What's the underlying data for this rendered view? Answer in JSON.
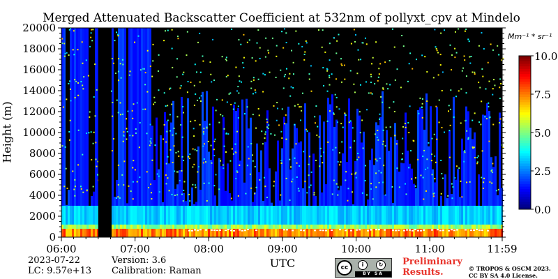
{
  "chart_data": {
    "type": "heatmap",
    "title": "Merged Attenuated Backscatter Coefficient at 532nm of pollyxt_cpv at Mindelo",
    "xlabel": "UTC",
    "ylabel": "Height (m)",
    "x_ticks": [
      "06:00",
      "07:00",
      "08:00",
      "09:00",
      "10:00",
      "11:00",
      "11:59"
    ],
    "x_range_hours": [
      6.0,
      11.983
    ],
    "y_ticks": [
      0,
      2000,
      4000,
      6000,
      8000,
      10000,
      12000,
      14000,
      16000,
      18000,
      20000
    ],
    "ylim": [
      0,
      20000
    ],
    "colorbar": {
      "unit": "Mm⁻¹ * sr⁻¹",
      "ticks": [
        "0.0",
        "2.5",
        "5.0",
        "7.5",
        "10.0"
      ],
      "range": [
        0,
        10
      ],
      "colormap": "jet"
    },
    "data_gap_utc": [
      6.5,
      6.67
    ],
    "aerosol_layer_top_m": 3000,
    "cloud_layer_height_m": 800,
    "background_color": "#000000"
  },
  "footer": {
    "date": "2023-07-22",
    "lc": "LC: 9.57e+13",
    "version": "Version: 3.6",
    "calibration": "Calibration: Raman",
    "preliminary_line1": "Preliminary",
    "preliminary_line2": "Results.",
    "copyright_line1": "© TROPOS & OSCM 2023.",
    "copyright_line2": "CC BY SA 4.0 License.",
    "badge_cc": "cc",
    "badge_strip": "BY SA"
  },
  "colors": {
    "prelim": "#e8332b",
    "badge_bg": "#aab2ab"
  }
}
